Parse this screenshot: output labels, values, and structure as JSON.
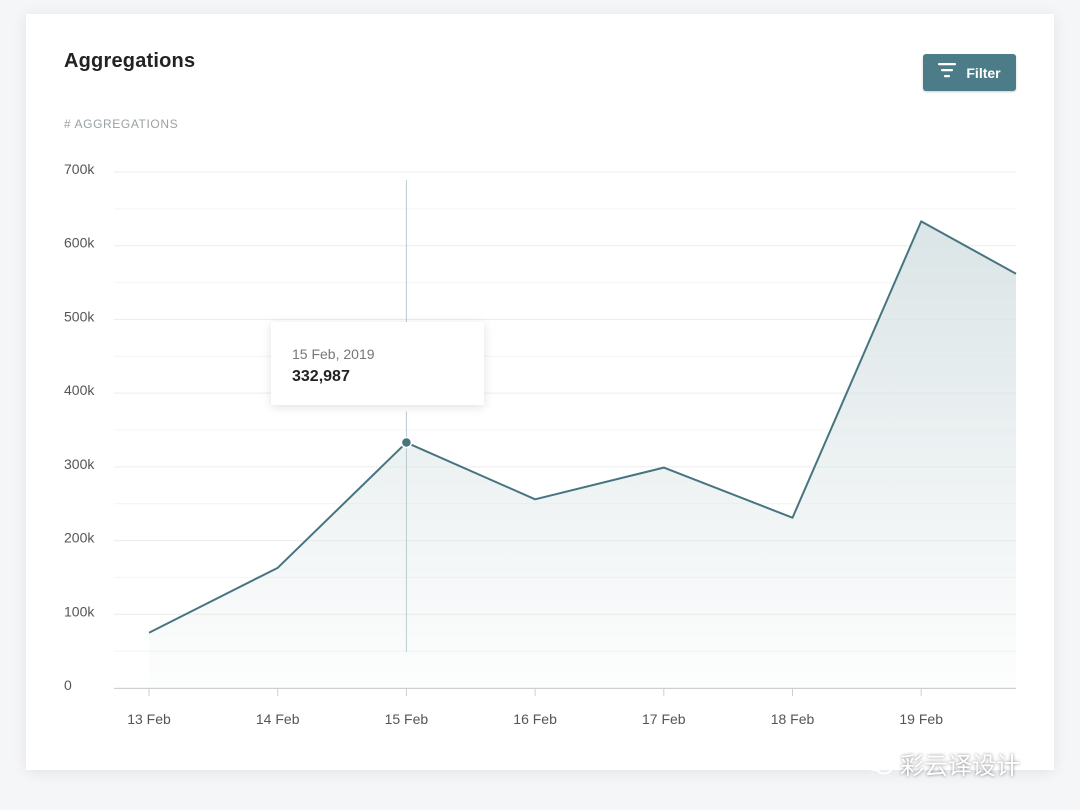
{
  "header": {
    "title": "Aggregations",
    "filter_label": "Filter"
  },
  "metric_label": "# AGGREGATIONS",
  "tooltip": {
    "date": "15 Feb, 2019",
    "value": "332,987"
  },
  "watermark": "彩云译设计",
  "colors": {
    "accent": "#4b7c87",
    "line": "#46757f",
    "area": "#d9e3e5",
    "grid": "#eeeeee"
  },
  "chart_data": {
    "type": "area",
    "title": "Aggregations",
    "ylabel": "# AGGREGATIONS",
    "xlabel": "",
    "x": [
      "13 Feb",
      "14 Feb",
      "15 Feb",
      "16 Feb",
      "17 Feb",
      "18 Feb",
      "19 Feb",
      ""
    ],
    "series": [
      {
        "values": [
          75000,
          163000,
          332987,
          256000,
          299000,
          231000,
          633000,
          562000
        ]
      }
    ],
    "y_ticks": [
      "0",
      "100k",
      "200k",
      "300k",
      "400k",
      "500k",
      "600k",
      "700k"
    ],
    "ylim": [
      0,
      700000
    ],
    "highlight_index": 2,
    "grid": true
  }
}
